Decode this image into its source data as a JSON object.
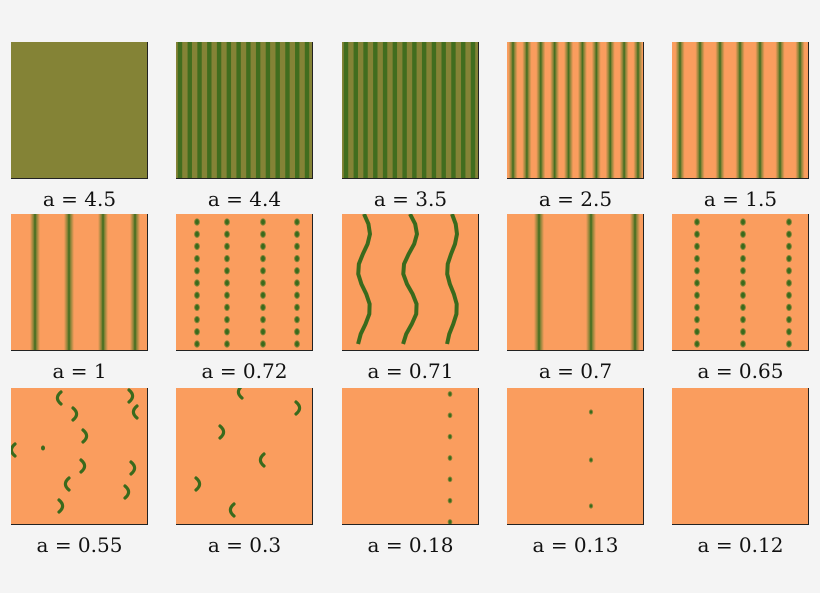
{
  "colors": {
    "orange": "#fa9d5e",
    "olive": "#848336",
    "green": "#3a6a1c"
  },
  "panels": [
    {
      "a": "4.5",
      "label": "a = 4.5",
      "pattern": "uniform-olive"
    },
    {
      "a": "4.4",
      "label": "a = 4.4",
      "pattern": "dense-stripes"
    },
    {
      "a": "3.5",
      "label": "a = 3.5",
      "pattern": "dense-stripes"
    },
    {
      "a": "2.5",
      "label": "a = 2.5",
      "pattern": "stripes"
    },
    {
      "a": "1.5",
      "label": "a = 1.5",
      "pattern": "stripes"
    },
    {
      "a": "1",
      "label": "a = 1",
      "pattern": "sparse-stripes"
    },
    {
      "a": "0.72",
      "label": "a = 0.72",
      "pattern": "dotted-columns"
    },
    {
      "a": "0.71",
      "label": "a = 0.71",
      "pattern": "wavy-stripes"
    },
    {
      "a": "0.7",
      "label": "a = 0.7",
      "pattern": "sparse-stripes"
    },
    {
      "a": "0.65",
      "label": "a = 0.65",
      "pattern": "dotted-columns"
    },
    {
      "a": "0.55",
      "label": "a = 0.55",
      "pattern": "arcs"
    },
    {
      "a": "0.3",
      "label": "a = 0.3",
      "pattern": "few-arcs"
    },
    {
      "a": "0.18",
      "label": "a = 0.18",
      "pattern": "single-dot-column"
    },
    {
      "a": "0.13",
      "label": "a = 0.13",
      "pattern": "three-dots"
    },
    {
      "a": "0.12",
      "label": "a = 0.12",
      "pattern": "uniform-orange"
    }
  ]
}
